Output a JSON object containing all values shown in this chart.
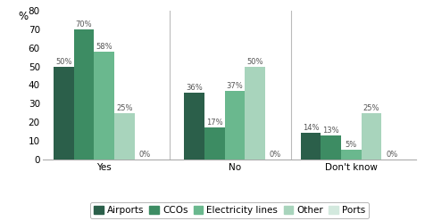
{
  "categories": [
    "Yes",
    "No",
    "Don't know"
  ],
  "series": {
    "Airports": [
      50,
      36,
      14
    ],
    "CCOs": [
      70,
      17,
      13
    ],
    "Electricity lines": [
      58,
      37,
      5
    ],
    "Other": [
      25,
      50,
      25
    ],
    "Ports": [
      0,
      0,
      0
    ]
  },
  "colors": {
    "Airports": "#2b5f4a",
    "CCOs": "#3d8c63",
    "Electricity lines": "#6ab88e",
    "Other": "#a8d4bc",
    "Ports": "#d3e9de"
  },
  "ylabel": "%",
  "ylim": [
    0,
    80
  ],
  "yticks": [
    0,
    10,
    20,
    30,
    40,
    50,
    60,
    70,
    80
  ],
  "bar_width": 0.115,
  "label_fontsize": 6.0,
  "legend_fontsize": 7.5,
  "tick_fontsize": 7.5,
  "background_color": "#ffffff",
  "border_color": "#aaaaaa",
  "divider_color": "#bbbbbb"
}
